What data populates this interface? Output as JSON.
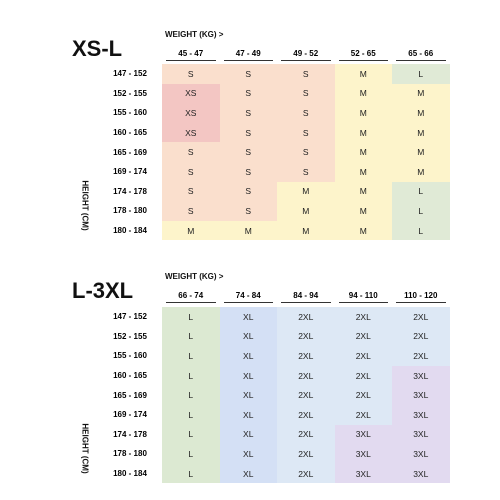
{
  "tables": [
    {
      "title": "XS-L",
      "weight_label": "WEIGHT (KG) >",
      "height_label": "HEIGHT (CM)",
      "columns": [
        "45 - 47",
        "47 - 49",
        "49 - 52",
        "52 - 65",
        "65 - 66"
      ],
      "row_labels": [
        "147 - 152",
        "152 - 155",
        "155 - 160",
        "160 - 165",
        "165 - 169",
        "169 - 174",
        "174 - 178",
        "178 - 180",
        "180 - 184"
      ],
      "rows": [
        [
          "S",
          "S",
          "S",
          "M",
          "L"
        ],
        [
          "XS",
          "S",
          "S",
          "M",
          "M"
        ],
        [
          "XS",
          "S",
          "S",
          "M",
          "M"
        ],
        [
          "XS",
          "S",
          "S",
          "M",
          "M"
        ],
        [
          "S",
          "S",
          "S",
          "M",
          "M"
        ],
        [
          "S",
          "S",
          "S",
          "M",
          "M"
        ],
        [
          "S",
          "S",
          "M",
          "M",
          "L"
        ],
        [
          "S",
          "S",
          "M",
          "M",
          "L"
        ],
        [
          "M",
          "M",
          "M",
          "M",
          "L"
        ]
      ],
      "colors": {
        "XS": "#f3c6c3",
        "S": "#fadfcd",
        "M": "#fdf4cb",
        "L": "#e0ead6"
      }
    },
    {
      "title": "L-3XL",
      "weight_label": "WEIGHT (KG) >",
      "height_label": "HEIGHT (CM)",
      "columns": [
        "66 - 74",
        "74 - 84",
        "84 - 94",
        "94 - 110",
        "110 - 120"
      ],
      "row_labels": [
        "147 - 152",
        "152 - 155",
        "155 - 160",
        "160 - 165",
        "165 - 169",
        "169 - 174",
        "174 - 178",
        "178 - 180",
        "180 - 184"
      ],
      "rows": [
        [
          "L",
          "XL",
          "2XL",
          "2XL",
          "2XL"
        ],
        [
          "L",
          "XL",
          "2XL",
          "2XL",
          "2XL"
        ],
        [
          "L",
          "XL",
          "2XL",
          "2XL",
          "2XL"
        ],
        [
          "L",
          "XL",
          "2XL",
          "2XL",
          "3XL"
        ],
        [
          "L",
          "XL",
          "2XL",
          "2XL",
          "3XL"
        ],
        [
          "L",
          "XL",
          "2XL",
          "2XL",
          "3XL"
        ],
        [
          "L",
          "XL",
          "2XL",
          "3XL",
          "3XL"
        ],
        [
          "L",
          "XL",
          "2XL",
          "3XL",
          "3XL"
        ],
        [
          "L",
          "XL",
          "2XL",
          "3XL",
          "3XL"
        ]
      ],
      "colors": {
        "L": "#dce9d2",
        "XL": "#d4e0f5",
        "2XL": "#dde8f5",
        "3XL": "#e2daf0"
      }
    }
  ]
}
